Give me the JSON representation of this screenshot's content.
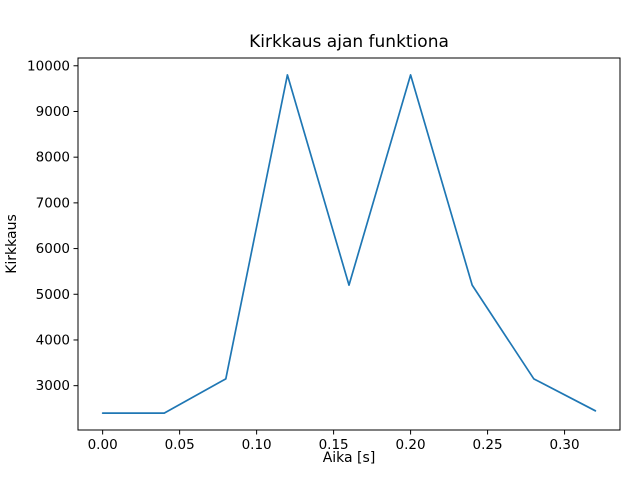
{
  "chart_data": {
    "type": "line",
    "title": "Kirkkaus ajan funktiona",
    "xlabel": "Aika [s]",
    "ylabel": "Kirkkaus",
    "x": [
      0.0,
      0.04,
      0.08,
      0.12,
      0.16,
      0.2,
      0.24,
      0.28,
      0.32
    ],
    "y": [
      2400,
      2400,
      3150,
      9800,
      5200,
      9800,
      5200,
      3150,
      2450
    ],
    "series_name": "Kirkkaus",
    "xticks": [
      0.0,
      0.05,
      0.1,
      0.15,
      0.2,
      0.25,
      0.3
    ],
    "xtick_labels": [
      "0.00",
      "0.05",
      "0.10",
      "0.15",
      "0.20",
      "0.25",
      "0.30"
    ],
    "yticks": [
      3000,
      4000,
      5000,
      6000,
      7000,
      8000,
      9000,
      10000
    ],
    "ytick_labels": [
      "3000",
      "4000",
      "5000",
      "6000",
      "7000",
      "8000",
      "9000",
      "10000"
    ],
    "xlim": [
      -0.016,
      0.336
    ],
    "ylim": [
      2030,
      10170
    ],
    "line_color": "#1f77b4",
    "axis_color": "#000000",
    "background_color": "#ffffff",
    "grid": false,
    "legend": null
  }
}
